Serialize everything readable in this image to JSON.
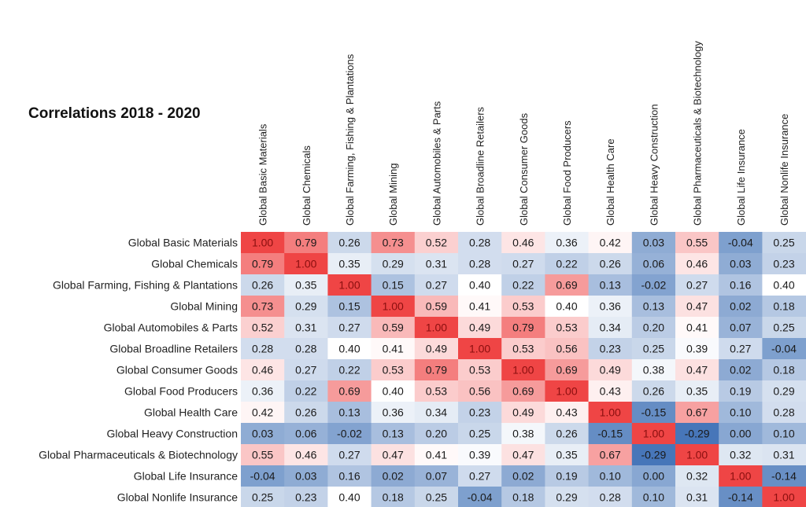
{
  "chart_data": {
    "type": "heatmap",
    "title": "Correlations 2018 - 2020",
    "labels": [
      "Global Basic Materials",
      "Global Chemicals",
      "Global Farming, Fishing & Plantations",
      "Global Mining",
      "Global Automobiles & Parts",
      "Global Broadline Retailers",
      "Global Consumer Goods",
      "Global Food Producers",
      "Global Health Care",
      "Global Heavy Construction",
      "Global Pharmaceuticals & Biotechnology",
      "Global Life Insurance",
      "Global Nonlife Insurance"
    ],
    "values": [
      [
        1.0,
        0.79,
        0.26,
        0.73,
        0.52,
        0.28,
        0.46,
        0.36,
        0.42,
        0.03,
        0.55,
        -0.04,
        0.25
      ],
      [
        0.79,
        1.0,
        0.35,
        0.29,
        0.31,
        0.28,
        0.27,
        0.22,
        0.26,
        0.06,
        0.46,
        0.03,
        0.23
      ],
      [
        0.26,
        0.35,
        1.0,
        0.15,
        0.27,
        0.4,
        0.22,
        0.69,
        0.13,
        -0.02,
        0.27,
        0.16,
        0.4
      ],
      [
        0.73,
        0.29,
        0.15,
        1.0,
        0.59,
        0.41,
        0.53,
        0.4,
        0.36,
        0.13,
        0.47,
        0.02,
        0.18
      ],
      [
        0.52,
        0.31,
        0.27,
        0.59,
        1.0,
        0.49,
        0.79,
        0.53,
        0.34,
        0.2,
        0.41,
        0.07,
        0.25
      ],
      [
        0.28,
        0.28,
        0.4,
        0.41,
        0.49,
        1.0,
        0.53,
        0.56,
        0.23,
        0.25,
        0.39,
        0.27,
        -0.04
      ],
      [
        0.46,
        0.27,
        0.22,
        0.53,
        0.79,
        0.53,
        1.0,
        0.69,
        0.49,
        0.38,
        0.47,
        0.02,
        0.18
      ],
      [
        0.36,
        0.22,
        0.69,
        0.4,
        0.53,
        0.56,
        0.69,
        1.0,
        0.43,
        0.26,
        0.35,
        0.19,
        0.29
      ],
      [
        0.42,
        0.26,
        0.13,
        0.36,
        0.34,
        0.23,
        0.49,
        0.43,
        1.0,
        -0.15,
        0.67,
        0.1,
        0.28
      ],
      [
        0.03,
        0.06,
        -0.02,
        0.13,
        0.2,
        0.25,
        0.38,
        0.26,
        -0.15,
        1.0,
        -0.29,
        0.0,
        0.1
      ],
      [
        0.55,
        0.46,
        0.27,
        0.47,
        0.41,
        0.39,
        0.47,
        0.35,
        0.67,
        -0.29,
        1.0,
        0.32,
        0.31
      ],
      [
        -0.04,
        0.03,
        0.16,
        0.02,
        0.07,
        0.27,
        0.02,
        0.19,
        0.1,
        0.0,
        0.32,
        1.0,
        -0.14
      ],
      [
        0.25,
        0.23,
        0.4,
        0.18,
        0.25,
        -0.04,
        0.18,
        0.29,
        0.28,
        0.1,
        0.31,
        -0.14,
        1.0
      ]
    ],
    "colors": {
      "high": "#ee3b3b",
      "low": "#3d6fb5",
      "neutral": "#ffffff"
    }
  }
}
